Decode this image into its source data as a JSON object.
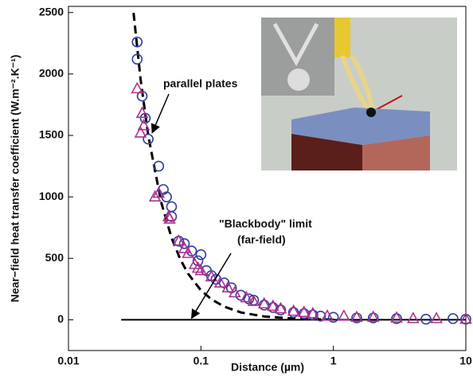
{
  "chart_data": {
    "type": "scatter",
    "x_label": "Distance (µm)",
    "y_label": "Near−field heat transfer  coefficient (W.m⁻².K⁻¹)",
    "xlim": [
      0.01,
      10
    ],
    "ylim": [
      -250,
      2550
    ],
    "log_x": true,
    "xticks": [
      0.01,
      0.1,
      1,
      10
    ],
    "yticks": [
      0,
      500,
      1000,
      1500,
      2000,
      2500
    ],
    "series": [
      {
        "marker": "circle",
        "color": "#2f3fa0",
        "x": [
          0.033,
          0.033,
          0.036,
          0.038,
          0.04,
          0.048,
          0.052,
          0.055,
          0.06,
          0.06,
          0.068,
          0.075,
          0.085,
          0.095,
          0.1,
          0.11,
          0.12,
          0.13,
          0.15,
          0.17,
          0.2,
          0.23,
          0.25,
          0.3,
          0.35,
          0.4,
          0.5,
          0.6,
          0.7,
          0.8,
          1,
          1.5,
          2,
          3,
          5,
          8,
          10
        ],
        "values": [
          2260,
          2120,
          1820,
          1640,
          1470,
          1250,
          1060,
          1000,
          920,
          840,
          640,
          620,
          560,
          480,
          530,
          400,
          360,
          330,
          300,
          260,
          200,
          170,
          160,
          120,
          100,
          80,
          60,
          50,
          40,
          30,
          20,
          15,
          15,
          10,
          5,
          10,
          5
        ]
      },
      {
        "marker": "triangle",
        "color": "#b0308f",
        "x": [
          0.033,
          0.036,
          0.037,
          0.035,
          0.048,
          0.045,
          0.058,
          0.057,
          0.068,
          0.075,
          0.08,
          0.09,
          0.095,
          0.1,
          0.12,
          0.14,
          0.16,
          0.18,
          0.22,
          0.25,
          0.3,
          0.35,
          0.4,
          0.5,
          0.6,
          0.7,
          0.9,
          1.2,
          1.5,
          2,
          3,
          4,
          6,
          10
        ],
        "values": [
          1880,
          1680,
          1580,
          1520,
          1030,
          1000,
          820,
          840,
          640,
          580,
          540,
          450,
          420,
          400,
          350,
          300,
          260,
          220,
          180,
          150,
          130,
          110,
          90,
          70,
          60,
          50,
          30,
          30,
          20,
          20,
          15,
          10,
          10,
          5
        ]
      },
      {
        "marker": "dashed-line",
        "color": "#000000",
        "x": [
          0.031,
          0.035,
          0.04,
          0.05,
          0.06,
          0.07,
          0.08,
          0.1,
          0.12,
          0.15,
          0.2,
          0.3,
          0.5,
          0.7,
          1
        ],
        "values": [
          2497,
          1959,
          1500,
          960,
          667,
          490,
          375,
          240,
          167,
          107,
          60,
          27,
          10,
          5,
          2
        ]
      },
      {
        "marker": "solid-line",
        "color": "#000000",
        "x": [
          0.025,
          10
        ],
        "values": [
          0,
          0
        ]
      }
    ],
    "annotations": [
      {
        "text": "parallel plates",
        "x": 0.04,
        "y": 1470
      },
      {
        "text": "\"Blackbody\" limit",
        "text2": "(far-field)",
        "x": 0.085,
        "y": 0
      }
    ]
  }
}
